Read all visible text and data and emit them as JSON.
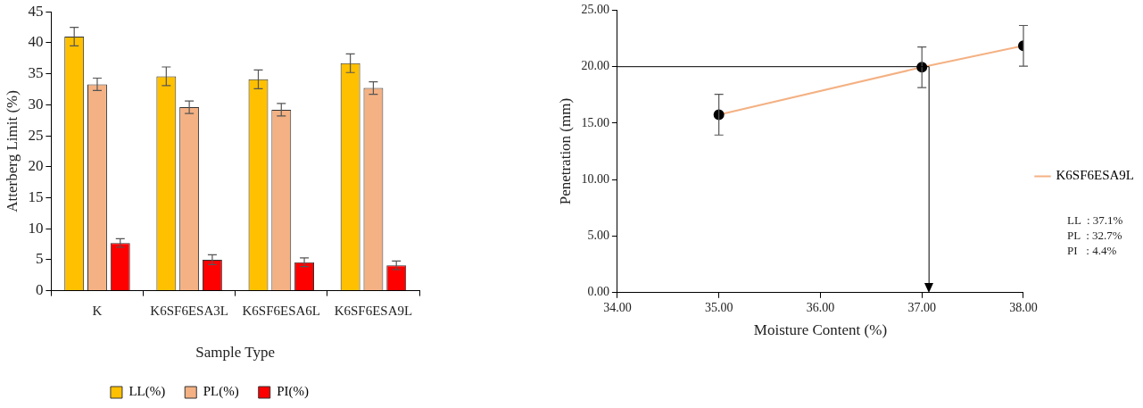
{
  "chart_data": [
    {
      "type": "bar",
      "xlabel": "Sample Type",
      "ylabel": "Atterberg Limit (%)",
      "categories": [
        "K",
        "K6SF6ESA3L",
        "K6SF6ESA6L",
        "K6SF6ESA9L"
      ],
      "series": [
        {
          "name": "LL(%)",
          "color": "#ffc000",
          "values": [
            41.0,
            34.6,
            34.1,
            36.7
          ],
          "errors": [
            1.5,
            1.5,
            1.5,
            1.5
          ]
        },
        {
          "name": "PL(%)",
          "color": "#f4b183",
          "values": [
            33.3,
            29.6,
            29.2,
            32.7
          ],
          "errors": [
            1.0,
            1.0,
            1.0,
            1.0
          ]
        },
        {
          "name": "PI(%)",
          "color": "#ff0000",
          "values": [
            7.7,
            5.0,
            4.6,
            4.1
          ],
          "errors": [
            0.7,
            0.8,
            0.7,
            0.7
          ]
        }
      ],
      "ylim": [
        0,
        45
      ],
      "yticks": [
        0,
        5,
        10,
        15,
        20,
        25,
        30,
        35,
        40,
        45
      ],
      "grid": false,
      "legend": "bottom"
    },
    {
      "type": "line",
      "xlabel": "Moisture Content (%)",
      "ylabel": "Penetration (mm)",
      "x": [
        35,
        37,
        38
      ],
      "series": [
        {
          "name": "K6SF6ESA9L",
          "color": "#f4b183",
          "values": [
            15.75,
            19.95,
            21.85
          ],
          "errors": [
            1.8,
            1.8,
            1.8
          ]
        }
      ],
      "xlim": [
        34,
        38
      ],
      "xticks": [
        {
          "value": 34,
          "label": "34.00"
        },
        {
          "value": 35,
          "label": "35.00"
        },
        {
          "value": 36,
          "label": "36.00"
        },
        {
          "value": 37,
          "label": "37.00"
        },
        {
          "value": 38,
          "label": "38.00"
        }
      ],
      "ylim": [
        0,
        25
      ],
      "yticks": [
        {
          "value": 0,
          "label": "0.00"
        },
        {
          "value": 5,
          "label": "5.00"
        },
        {
          "value": 10,
          "label": "10.00"
        },
        {
          "value": 15,
          "label": "15.00"
        },
        {
          "value": 20,
          "label": "20.00"
        },
        {
          "value": 25,
          "label": "25.00"
        }
      ],
      "ref_lines": [
        {
          "axis": "y",
          "value": 20,
          "color": "#000000"
        },
        {
          "axis": "x",
          "value": 37.07,
          "color": "#000000"
        }
      ],
      "annotations": [
        "LL  : 37.1%",
        "PL  : 32.7%",
        "PI   : 4.4%"
      ],
      "marker": "circle",
      "grid": false,
      "legend": "right"
    }
  ]
}
